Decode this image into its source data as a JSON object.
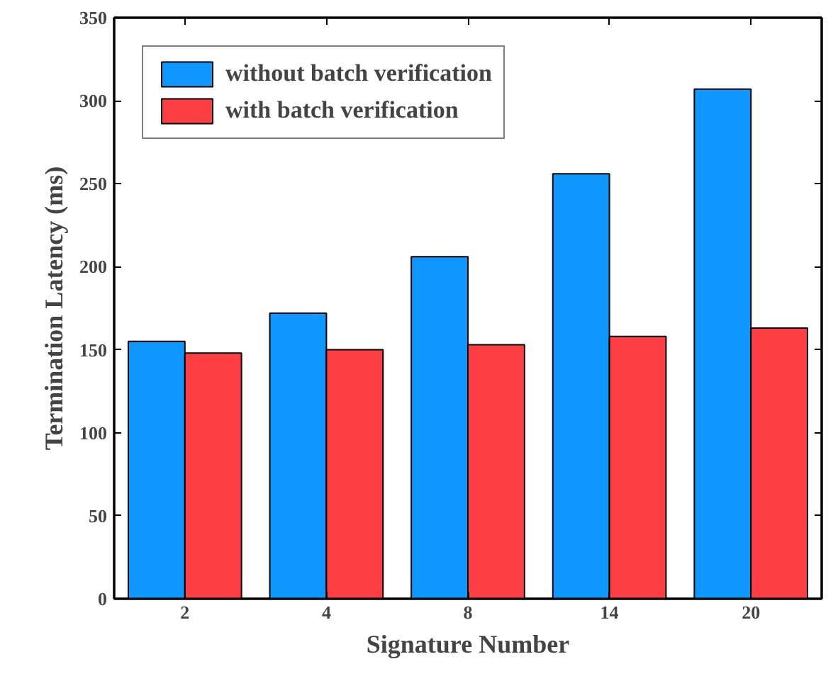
{
  "chart_data": {
    "type": "bar",
    "xlabel": "Signature Number",
    "ylabel": "Termination Latency (ms)",
    "categories": [
      "2",
      "4",
      "8",
      "14",
      "20"
    ],
    "series": [
      {
        "name": "without batch verification",
        "color": "#0d97ff",
        "values": [
          155,
          172,
          206,
          256,
          307
        ]
      },
      {
        "name": "with batch verification",
        "color": "#fd3f44",
        "values": [
          148,
          150,
          153,
          158,
          163
        ]
      }
    ],
    "ylim": [
      0,
      350
    ],
    "yticks": [
      0,
      50,
      100,
      150,
      200,
      250,
      300,
      350
    ],
    "grid": false,
    "legend": "top left"
  }
}
